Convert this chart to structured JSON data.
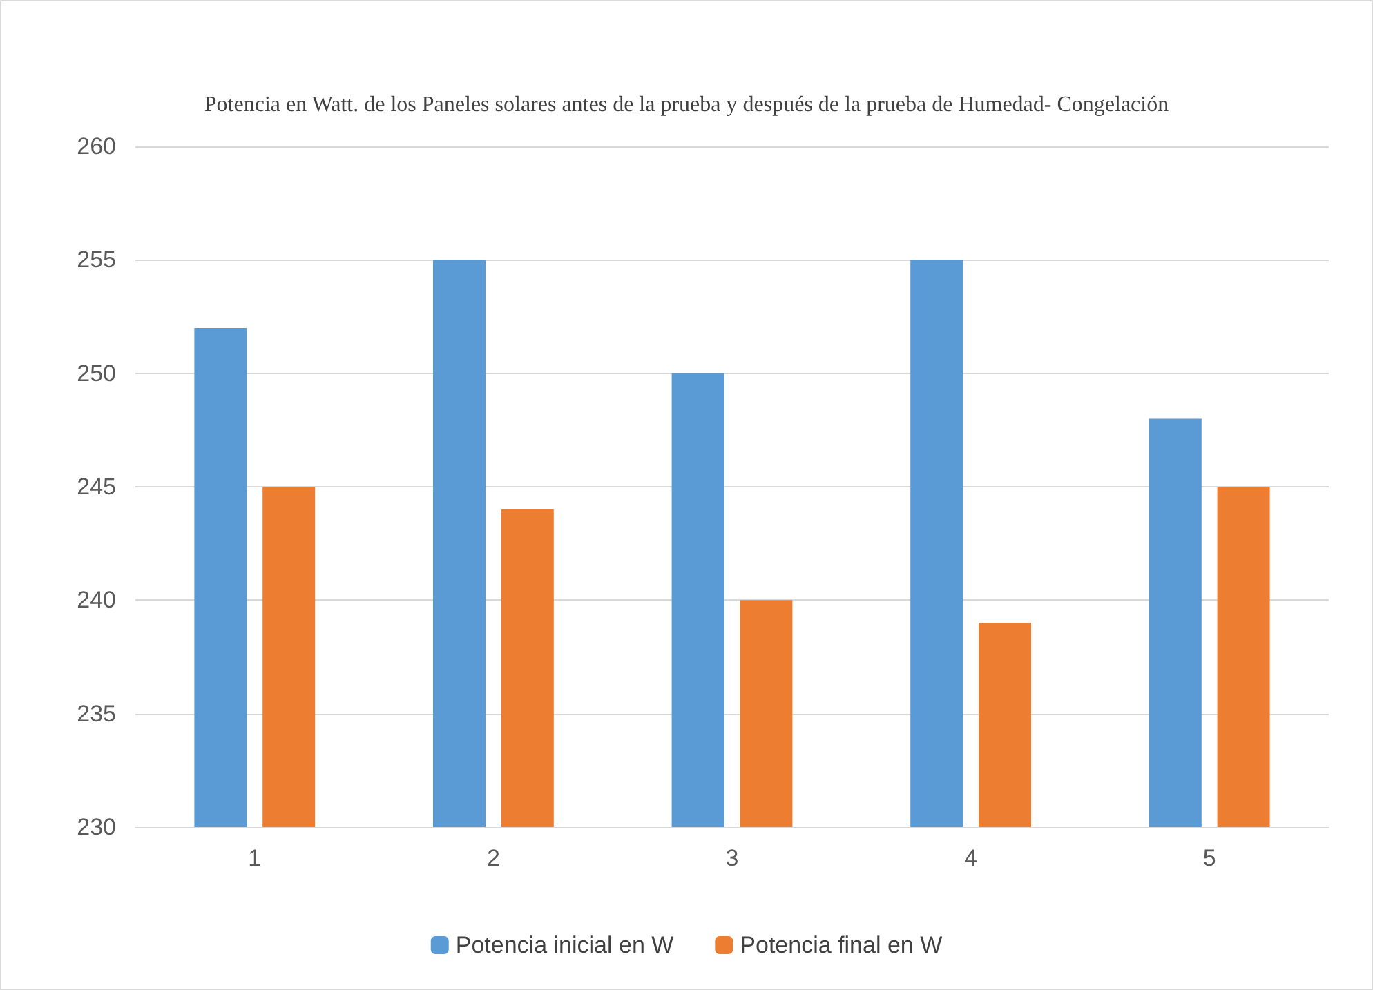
{
  "chart_data": {
    "type": "bar",
    "title": "Potencia en Watt. de los Paneles solares antes de la prueba y después de la prueba de Humedad- Congelación",
    "categories": [
      "1",
      "2",
      "3",
      "4",
      "5"
    ],
    "series": [
      {
        "name": "Potencia inicial en W",
        "color": "#5b9bd5",
        "values": [
          252,
          255,
          250,
          255,
          248
        ]
      },
      {
        "name": "Potencia final en W",
        "color": "#ed7d31",
        "values": [
          245,
          244,
          240,
          239,
          245
        ]
      }
    ],
    "ylim": [
      230,
      260
    ],
    "yticks": [
      230,
      235,
      240,
      245,
      250,
      255,
      260
    ],
    "grid": "y",
    "legend": "bottom"
  }
}
